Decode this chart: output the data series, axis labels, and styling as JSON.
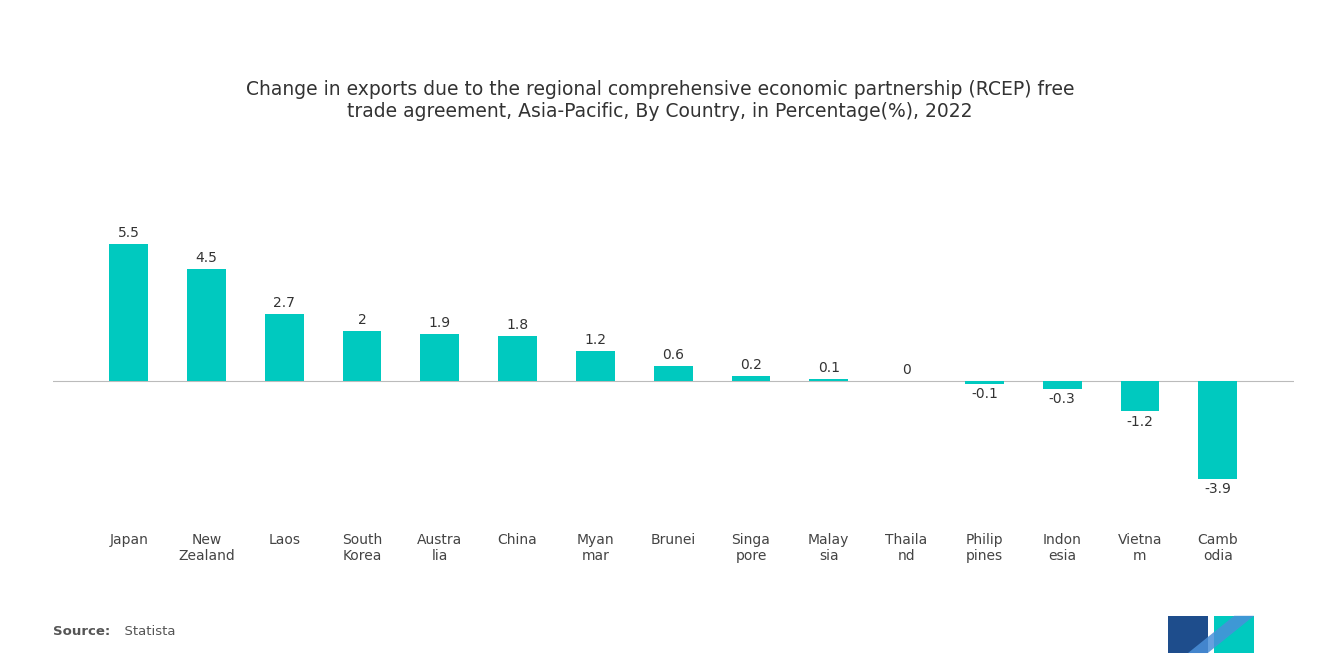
{
  "title": "Change in exports due to the regional comprehensive economic partnership (RCEP) free\ntrade agreement, Asia-Pacific, By Country, in Percentage(%), 2022",
  "categories": [
    "Japan",
    "New\nZealand",
    "Laos",
    "South\nKorea",
    "Austra\nlia",
    "China",
    "Myan\nmar",
    "Brunei",
    "Singa\npore",
    "Malay\nsia",
    "Thaila\nnd",
    "Philip\npines",
    "Indon\nesia",
    "Vietna\nm",
    "Camb\nodia"
  ],
  "values": [
    5.5,
    4.5,
    2.7,
    2,
    1.9,
    1.8,
    1.2,
    0.6,
    0.2,
    0.1,
    0,
    -0.1,
    -0.3,
    -1.2,
    -3.9
  ],
  "bar_color": "#00C9BF",
  "background_color": "#ffffff",
  "title_fontsize": 13.5,
  "tick_fontsize": 10,
  "value_fontsize": 10,
  "source_text_bold": "Source:",
  "source_text_normal": "  Statista",
  "ylim": [
    -5.5,
    7.8
  ],
  "bar_width": 0.5
}
